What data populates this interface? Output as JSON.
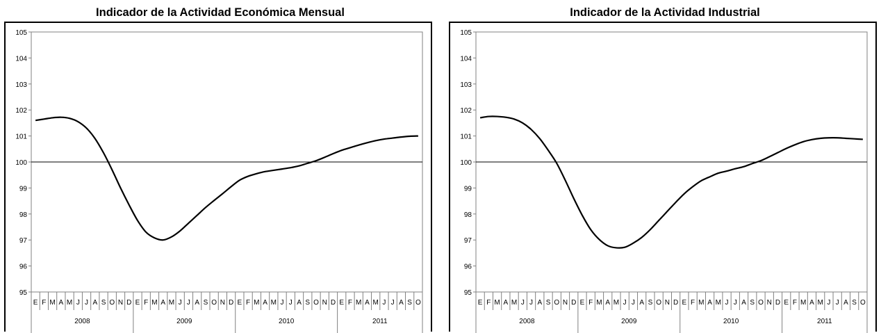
{
  "chart_data": [
    {
      "type": "line",
      "title": "Indicador de la Actividad Económica Mensual",
      "ylim": [
        95,
        105
      ],
      "yticks": [
        "95",
        "96",
        "97",
        "98",
        "99",
        "100",
        "101",
        "102",
        "103",
        "104",
        "105"
      ],
      "reference_line": 100,
      "grid": false,
      "month_labels": [
        "E",
        "F",
        "M",
        "A",
        "M",
        "J",
        "J",
        "A",
        "S",
        "O",
        "N",
        "D",
        "E",
        "F",
        "M",
        "A",
        "M",
        "J",
        "J",
        "A",
        "S",
        "O",
        "N",
        "D",
        "E",
        "F",
        "M",
        "A",
        "M",
        "J",
        "J",
        "A",
        "S",
        "O",
        "N",
        "D",
        "E",
        "F",
        "M",
        "A",
        "M",
        "J",
        "J",
        "A",
        "S",
        "O"
      ],
      "years": [
        {
          "label": "2008",
          "months": 12
        },
        {
          "label": "2009",
          "months": 12
        },
        {
          "label": "2010",
          "months": 12
        },
        {
          "label": "2011",
          "months": 10
        }
      ],
      "series": [
        {
          "values": [
            101.6,
            101.65,
            101.7,
            101.72,
            101.68,
            101.55,
            101.3,
            100.9,
            100.35,
            99.7,
            99.0,
            98.35,
            97.75,
            97.3,
            97.08,
            97.0,
            97.12,
            97.35,
            97.65,
            97.95,
            98.25,
            98.52,
            98.78,
            99.05,
            99.3,
            99.45,
            99.55,
            99.63,
            99.68,
            99.73,
            99.78,
            99.85,
            99.95,
            100.05,
            100.18,
            100.32,
            100.45,
            100.55,
            100.65,
            100.74,
            100.82,
            100.88,
            100.92,
            100.96,
            100.99,
            101.0
          ]
        }
      ]
    },
    {
      "type": "line",
      "title": "Indicador de la Actividad Industrial",
      "ylim": [
        95,
        105
      ],
      "yticks": [
        "95",
        "96",
        "97",
        "98",
        "99",
        "100",
        "101",
        "102",
        "103",
        "104",
        "105"
      ],
      "reference_line": 100,
      "grid": false,
      "month_labels": [
        "E",
        "F",
        "M",
        "A",
        "M",
        "J",
        "J",
        "A",
        "S",
        "O",
        "N",
        "D",
        "E",
        "F",
        "M",
        "A",
        "M",
        "J",
        "J",
        "A",
        "S",
        "O",
        "N",
        "D",
        "E",
        "F",
        "M",
        "A",
        "M",
        "J",
        "J",
        "A",
        "S",
        "O",
        "N",
        "D",
        "E",
        "F",
        "M",
        "A",
        "M",
        "J",
        "J",
        "A",
        "S",
        "O"
      ],
      "years": [
        {
          "label": "2008",
          "months": 12
        },
        {
          "label": "2009",
          "months": 12
        },
        {
          "label": "2010",
          "months": 12
        },
        {
          "label": "2011",
          "months": 10
        }
      ],
      "series": [
        {
          "values": [
            101.7,
            101.75,
            101.75,
            101.72,
            101.65,
            101.5,
            101.25,
            100.9,
            100.45,
            99.95,
            99.3,
            98.6,
            97.95,
            97.4,
            97.02,
            96.78,
            96.7,
            96.72,
            96.88,
            97.1,
            97.4,
            97.75,
            98.1,
            98.45,
            98.78,
            99.05,
            99.28,
            99.43,
            99.57,
            99.65,
            99.74,
            99.82,
            99.94,
            100.05,
            100.2,
            100.36,
            100.52,
            100.66,
            100.78,
            100.86,
            100.91,
            100.93,
            100.93,
            100.91,
            100.89,
            100.87
          ]
        }
      ]
    }
  ]
}
